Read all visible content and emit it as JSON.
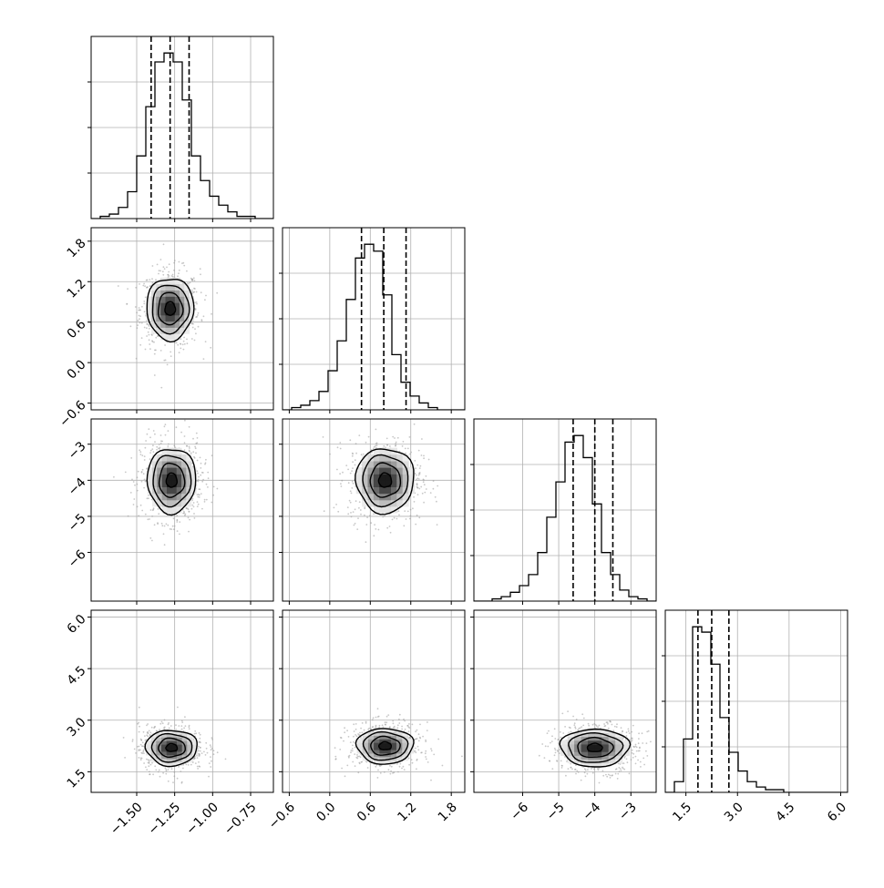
{
  "chart_data": {
    "type": "corner",
    "n_params": 4,
    "params": [
      {
        "range": [
          -1.8,
          -0.6
        ],
        "ticks": [
          -1.5,
          -1.25,
          -1.0,
          -0.75
        ],
        "tick_labels": [
          "−1.50",
          "−1.25",
          "−1.00",
          "−0.75"
        ],
        "quantiles": [
          -1.405,
          -1.28,
          -1.155
        ]
      },
      {
        "range": [
          -0.7,
          2.0
        ],
        "ticks": [
          -0.6,
          0.0,
          0.6,
          1.2,
          1.8
        ],
        "tick_labels": [
          "−0.6",
          "0.0",
          "0.6",
          "1.2",
          "1.8"
        ],
        "quantiles": [
          0.47,
          0.8,
          1.13
        ]
      },
      {
        "range": [
          -7.35,
          -2.3
        ],
        "ticks": [
          -6,
          -5,
          -4,
          -3
        ],
        "tick_labels": [
          "−6",
          "−5",
          "−4",
          "−3"
        ],
        "quantiles": [
          -4.6,
          -4.0,
          -3.5
        ]
      },
      {
        "range": [
          0.9,
          6.2
        ],
        "ticks": [
          1.5,
          3.0,
          4.5,
          6.0
        ],
        "tick_labels": [
          "1.5",
          "3.0",
          "4.5",
          "6.0"
        ],
        "quantiles": [
          1.85,
          2.25,
          2.75
        ]
      }
    ],
    "histograms": [
      {
        "bin_start": -1.8,
        "bin_width": 0.06,
        "counts": [
          0,
          1,
          2,
          5,
          12,
          28,
          50,
          70,
          74,
          70,
          53,
          28,
          17,
          10,
          6,
          3,
          1,
          1,
          0,
          0
        ]
      },
      {
        "bin_start": -0.7,
        "bin_width": 0.135,
        "counts": [
          0,
          1,
          2,
          4,
          8,
          17,
          30,
          48,
          66,
          72,
          69,
          50,
          24,
          12,
          6,
          3,
          1,
          0,
          0,
          0
        ]
      },
      {
        "bin_start": -7.35,
        "bin_width": 0.2525,
        "counts": [
          0,
          0,
          1,
          2,
          4,
          7,
          12,
          22,
          38,
          54,
          72,
          75,
          65,
          44,
          22,
          12,
          5,
          2,
          1,
          0
        ]
      },
      {
        "bin_start": 0.9,
        "bin_width": 0.265,
        "counts": [
          0,
          4,
          20,
          62,
          60,
          48,
          28,
          15,
          8,
          4,
          2,
          1,
          1,
          0,
          0,
          0,
          0,
          0,
          0,
          0
        ]
      }
    ],
    "blobs": [
      {
        "row": 1,
        "col": 0,
        "center": [
          -1.28,
          0.8
        ],
        "radius": [
          0.155,
          0.46
        ],
        "tilt": 0.0
      },
      {
        "row": 2,
        "col": 0,
        "center": [
          -1.27,
          -4.0
        ],
        "radius": [
          0.16,
          0.9
        ],
        "tilt": 0.0
      },
      {
        "row": 2,
        "col": 1,
        "center": [
          0.82,
          -4.0
        ],
        "radius": [
          0.43,
          0.9
        ],
        "tilt": 0.0
      },
      {
        "row": 3,
        "col": 0,
        "center": [
          -1.27,
          2.2
        ],
        "radius": [
          0.17,
          0.52
        ],
        "tilt": 0.0
      },
      {
        "row": 3,
        "col": 1,
        "center": [
          0.82,
          2.25
        ],
        "radius": [
          0.42,
          0.52
        ],
        "tilt": 0.0
      },
      {
        "row": 3,
        "col": 2,
        "center": [
          -4.0,
          2.2
        ],
        "radius": [
          0.95,
          0.55
        ],
        "tilt": 0.0
      }
    ],
    "grid": true,
    "colors": {
      "line": "#000000",
      "grid": "#b0b0b0",
      "point": "#9a9a9a",
      "frame": "#000000"
    }
  }
}
